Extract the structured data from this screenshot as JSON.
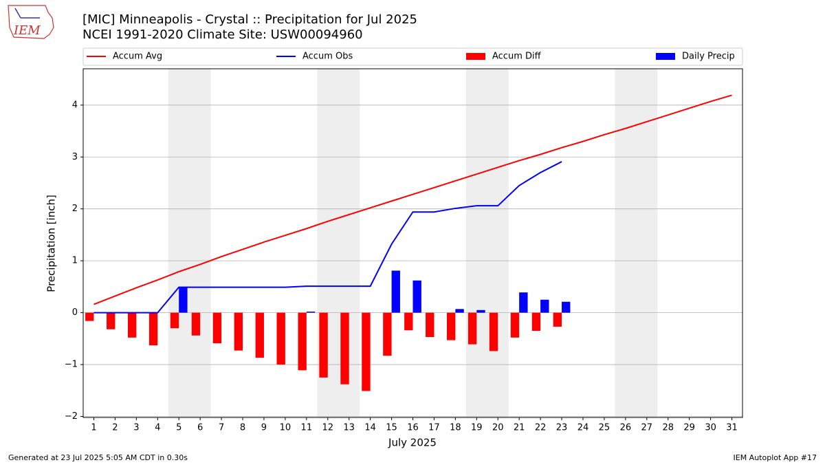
{
  "chart_data": {
    "type": "combo",
    "title": "[MIC] Minneapolis - Crystal :: Precipitation for Jul 2025",
    "subtitle": "NCEI 1991-2020 Climate Site: USW00094960",
    "ylabel": "Precipitation [inch]",
    "xlabel": "July 2025",
    "logo_text": "IEM",
    "footer_left": "Generated at 23 Jul 2025 5:05 AM CDT in 0.30s",
    "footer_right": "IEM Autoplot App #17",
    "x": [
      1,
      2,
      3,
      4,
      5,
      6,
      7,
      8,
      9,
      10,
      11,
      12,
      13,
      14,
      15,
      16,
      17,
      18,
      19,
      20,
      21,
      22,
      23,
      24,
      25,
      26,
      27,
      28,
      29,
      30,
      31
    ],
    "xlim": [
      0.5,
      31.5
    ],
    "xticks": [
      1,
      2,
      3,
      4,
      5,
      6,
      7,
      8,
      9,
      10,
      11,
      12,
      13,
      14,
      15,
      16,
      17,
      18,
      19,
      20,
      21,
      22,
      23,
      24,
      25,
      26,
      27,
      28,
      29,
      30,
      31
    ],
    "ylim": [
      -2.02,
      4.7
    ],
    "yticks": [
      {
        "value": -2,
        "label": "−2"
      },
      {
        "value": -1,
        "label": "−1"
      },
      0,
      1,
      2,
      3,
      4
    ],
    "grid": true,
    "shaded_ranges": [
      [
        4.5,
        6.5
      ],
      [
        11.5,
        13.5
      ],
      [
        18.5,
        20.5
      ],
      [
        25.5,
        27.5
      ]
    ],
    "shade_color": "#eeeeee",
    "legend": "top",
    "series": [
      {
        "name": "Accum Avg",
        "kind": "line",
        "color": "#ff0000",
        "values": [
          0.16,
          0.32,
          0.48,
          0.63,
          0.79,
          0.93,
          1.08,
          1.22,
          1.36,
          1.49,
          1.62,
          1.76,
          1.89,
          2.02,
          2.15,
          2.28,
          2.41,
          2.54,
          2.67,
          2.8,
          2.93,
          3.05,
          3.18,
          3.3,
          3.43,
          3.55,
          3.68,
          3.81,
          3.94,
          4.07,
          4.19
        ]
      },
      {
        "name": "Accum Obs",
        "kind": "line",
        "color": "#0000ff",
        "values": [
          0,
          0,
          0,
          0,
          0.49,
          0.49,
          0.49,
          0.49,
          0.49,
          0.49,
          0.51,
          0.51,
          0.51,
          0.51,
          1.32,
          1.94,
          1.94,
          2.01,
          2.06,
          2.06,
          2.45,
          2.7,
          2.91,
          null,
          null,
          null,
          null,
          null,
          null,
          null,
          null
        ]
      },
      {
        "name": "Accum Diff",
        "kind": "bar",
        "offset": -0.4,
        "color": "#ff0000",
        "values": [
          -0.16,
          -0.32,
          -0.48,
          -0.63,
          -0.3,
          -0.44,
          -0.59,
          -0.73,
          -0.87,
          -1.0,
          -1.11,
          -1.25,
          -1.38,
          -1.51,
          -0.83,
          -0.34,
          -0.47,
          -0.53,
          -0.61,
          -0.74,
          -0.48,
          -0.35,
          -0.27,
          null,
          null,
          null,
          null,
          null,
          null,
          null,
          null
        ]
      },
      {
        "name": "Daily Precip",
        "kind": "bar",
        "offset": 0,
        "color": "#0000ff",
        "values": [
          0,
          0,
          0,
          0,
          0.49,
          0,
          0,
          0,
          0,
          0,
          0.02,
          0,
          0,
          0,
          0.81,
          0.62,
          0,
          0.07,
          0.05,
          0,
          0.39,
          0.25,
          0.21,
          null,
          null,
          null,
          null,
          null,
          null,
          null,
          null
        ]
      }
    ]
  }
}
